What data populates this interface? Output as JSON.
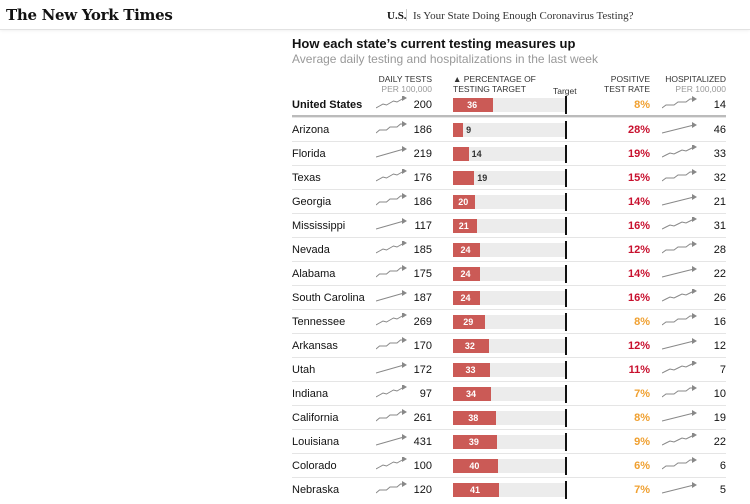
{
  "header": {
    "logo": "The New York Times",
    "section": "U.S.",
    "headline": "Is Your State Doing Enough Coronavirus Testing?"
  },
  "title": "How each state’s current testing measures up",
  "subtitle": "Average daily testing and hospitalizations in the last week",
  "columns": {
    "tests1": "Daily tests",
    "tests2": "per 100,000",
    "pct1": "▲ Percentage of",
    "pct2": "testing target",
    "target": "Target",
    "rate1": "Positive",
    "rate2": "test rate",
    "hosp1": "Hospitalized",
    "hosp2": "per 100,000"
  },
  "colors": {
    "bar": "#cb5a56",
    "orange": "#f0a030",
    "red": "#c8102e"
  },
  "rows": [
    {
      "name": "United States",
      "tests": "200",
      "pct": 36,
      "pct_label": "36",
      "rate": "8%",
      "hosp": "14"
    },
    {
      "name": "Arizona",
      "tests": "186",
      "pct": 9,
      "pct_label": "9",
      "rate": "28%",
      "hosp": "46"
    },
    {
      "name": "Florida",
      "tests": "219",
      "pct": 14,
      "pct_label": "14",
      "rate": "19%",
      "hosp": "33"
    },
    {
      "name": "Texas",
      "tests": "176",
      "pct": 19,
      "pct_label": "19",
      "rate": "15%",
      "hosp": "32"
    },
    {
      "name": "Georgia",
      "tests": "186",
      "pct": 20,
      "pct_label": "20",
      "rate": "14%",
      "hosp": "21"
    },
    {
      "name": "Mississippi",
      "tests": "117",
      "pct": 21,
      "pct_label": "21",
      "rate": "16%",
      "hosp": "31"
    },
    {
      "name": "Nevada",
      "tests": "185",
      "pct": 24,
      "pct_label": "24",
      "rate": "12%",
      "hosp": "28"
    },
    {
      "name": "Alabama",
      "tests": "175",
      "pct": 24,
      "pct_label": "24",
      "rate": "14%",
      "hosp": "22"
    },
    {
      "name": "South Carolina",
      "tests": "187",
      "pct": 24,
      "pct_label": "24",
      "rate": "16%",
      "hosp": "26"
    },
    {
      "name": "Tennessee",
      "tests": "269",
      "pct": 29,
      "pct_label": "29",
      "rate": "8%",
      "hosp": "16"
    },
    {
      "name": "Arkansas",
      "tests": "170",
      "pct": 32,
      "pct_label": "32",
      "rate": "12%",
      "hosp": "12"
    },
    {
      "name": "Utah",
      "tests": "172",
      "pct": 33,
      "pct_label": "33",
      "rate": "11%",
      "hosp": "7"
    },
    {
      "name": "Indiana",
      "tests": "97",
      "pct": 34,
      "pct_label": "34",
      "rate": "7%",
      "hosp": "10"
    },
    {
      "name": "California",
      "tests": "261",
      "pct": 38,
      "pct_label": "38",
      "rate": "8%",
      "hosp": "19"
    },
    {
      "name": "Louisiana",
      "tests": "431",
      "pct": 39,
      "pct_label": "39",
      "rate": "9%",
      "hosp": "22"
    },
    {
      "name": "Colorado",
      "tests": "100",
      "pct": 40,
      "pct_label": "40",
      "rate": "6%",
      "hosp": "6"
    },
    {
      "name": "Nebraska",
      "tests": "120",
      "pct": 41,
      "pct_label": "41",
      "rate": "7%",
      "hosp": "5"
    }
  ]
}
